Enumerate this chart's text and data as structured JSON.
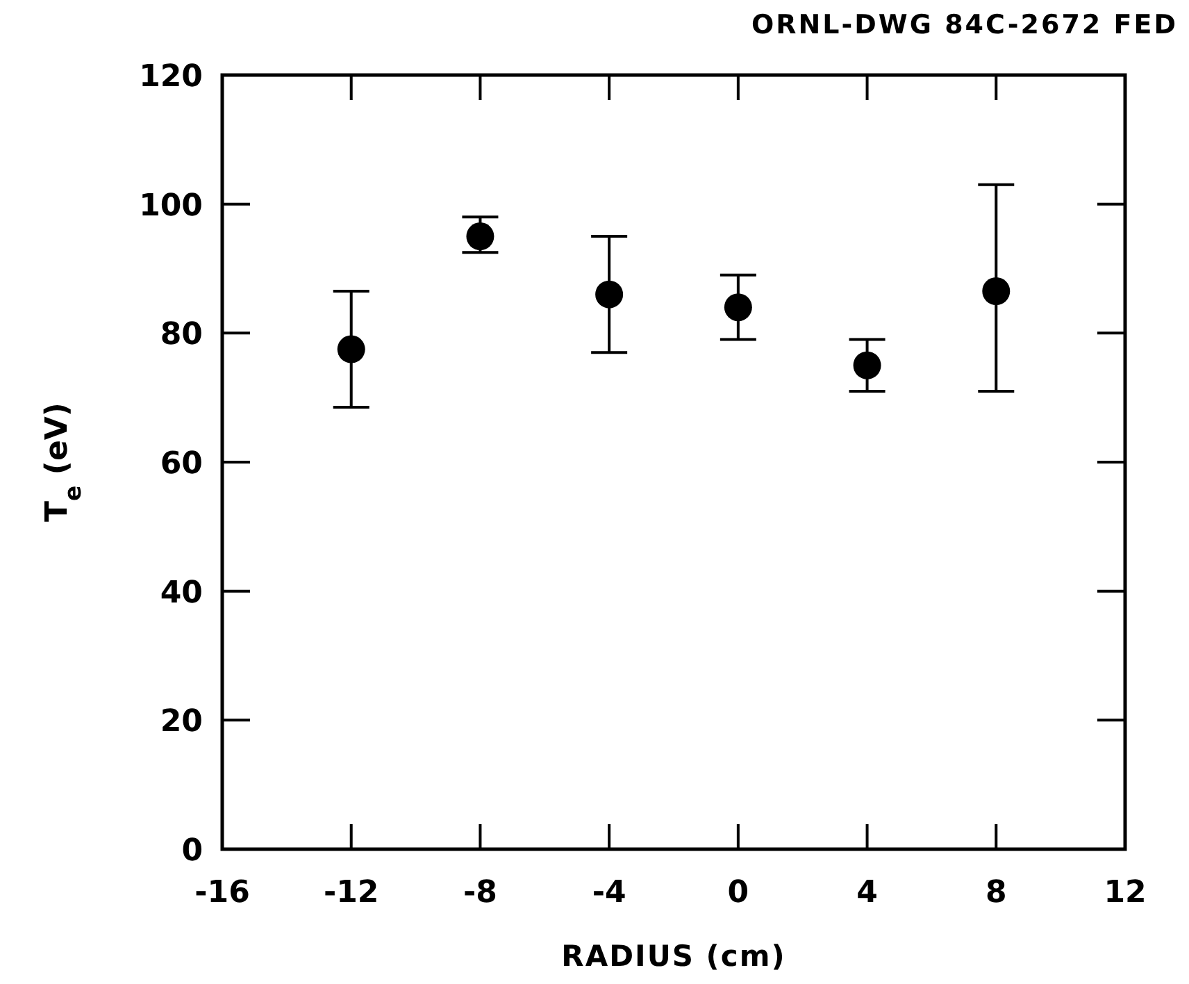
{
  "chart_data": {
    "type": "scatter",
    "xlabel": "RADIUS (cm)",
    "ylabel": "T$_{e}$ (eV)",
    "annotations": [
      "ORNL-DWG 84C-2672 FED"
    ],
    "x": [
      -12,
      -8,
      -4,
      0,
      4,
      8
    ],
    "series": [
      {
        "color": "#000000",
        "values": [
          77.5,
          95,
          86,
          84,
          75,
          86.5
        ],
        "errors": [
          [
            68.5,
            86.5
          ],
          [
            92.5,
            98
          ],
          [
            77,
            95
          ],
          [
            79,
            89
          ],
          [
            71,
            79
          ],
          [
            71,
            103
          ]
        ]
      }
    ],
    "xlim": [
      -16,
      12
    ],
    "xticks": [
      -16,
      -12,
      -8,
      -4,
      0,
      4,
      8,
      12
    ],
    "ylim": [
      0,
      120
    ],
    "yticks": [
      0,
      20,
      40,
      60,
      80,
      100,
      120
    ],
    "marker": "circle"
  }
}
